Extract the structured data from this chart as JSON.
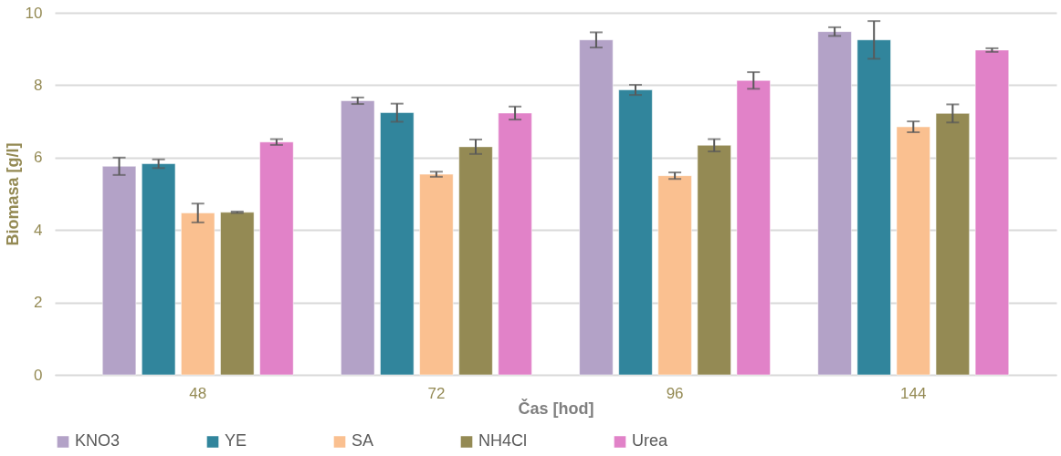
{
  "chart_data": {
    "type": "bar",
    "xlabel": "Čas [hod]",
    "ylabel": "Biomasa [g/l]",
    "categories": [
      "48",
      "72",
      "96",
      "144"
    ],
    "series": [
      {
        "name": "KNO3",
        "color": "#b3a2c7",
        "values": [
          5.76,
          7.57,
          9.25,
          9.48
        ],
        "errors": [
          0.24,
          0.09,
          0.21,
          0.12
        ]
      },
      {
        "name": "YE",
        "color": "#31859c",
        "values": [
          5.83,
          7.24,
          7.87,
          9.25
        ],
        "errors": [
          0.12,
          0.25,
          0.14,
          0.52
        ]
      },
      {
        "name": "SA",
        "color": "#fac090",
        "values": [
          4.47,
          5.54,
          5.5,
          6.85
        ],
        "errors": [
          0.26,
          0.07,
          0.09,
          0.15
        ]
      },
      {
        "name": "NH4Cl",
        "color": "#948a54",
        "values": [
          4.49,
          6.3,
          6.34,
          7.22
        ],
        "errors": [
          0.02,
          0.2,
          0.17,
          0.25
        ]
      },
      {
        "name": "Urea",
        "color": "#e182c8",
        "values": [
          6.43,
          7.23,
          8.13,
          8.97
        ],
        "errors": [
          0.08,
          0.18,
          0.23,
          0.05
        ]
      }
    ],
    "ylim": [
      0,
      10
    ],
    "yticks": [
      0,
      2,
      4,
      6,
      8,
      10
    ],
    "grid": "y",
    "legend": "bottom"
  }
}
